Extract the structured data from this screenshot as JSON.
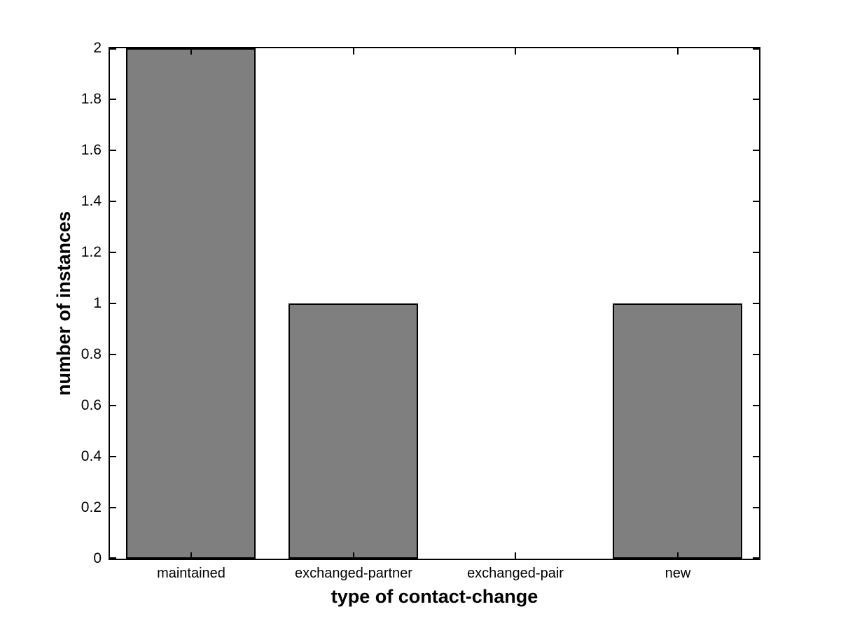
{
  "chart_data": {
    "type": "bar",
    "categories": [
      "maintained",
      "exchanged-partner",
      "exchanged-pair",
      "new"
    ],
    "values": [
      2,
      1,
      0,
      1
    ],
    "title": "",
    "xlabel": "type of contact-change",
    "ylabel": "number of instances",
    "ylim": [
      0,
      2
    ],
    "yticks": [
      0,
      0.2,
      0.4,
      0.6,
      0.8,
      1,
      1.2,
      1.4,
      1.6,
      1.8,
      2
    ],
    "ytick_labels": [
      "0",
      "0.2",
      "0.4",
      "0.6",
      "0.8",
      "1",
      "1.2",
      "1.4",
      "1.6",
      "1.8",
      "2"
    ],
    "bar_width_fraction": 0.8,
    "bar_color": "#7f7f7f",
    "bar_edge_color": "#000000",
    "axis_color": "#000000",
    "background_color": "#ffffff",
    "grid": false,
    "legend": null,
    "tick_direction": "in",
    "box": true
  }
}
